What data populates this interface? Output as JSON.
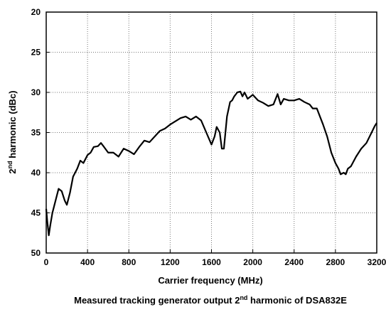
{
  "chart_data": {
    "type": "line",
    "title": [
      "Measured tracking generator output 2",
      "nd",
      " harmonic of DSA832E"
    ],
    "x_label": "Carrier frequency (MHz)",
    "y_label": [
      "2",
      "nd",
      " harmonic (dBc)"
    ],
    "x": [
      0,
      10,
      25,
      40,
      60,
      80,
      100,
      120,
      150,
      180,
      200,
      230,
      260,
      300,
      330,
      360,
      400,
      430,
      460,
      500,
      530,
      560,
      600,
      650,
      700,
      750,
      800,
      850,
      900,
      950,
      1000,
      1050,
      1100,
      1150,
      1200,
      1250,
      1300,
      1350,
      1400,
      1450,
      1500,
      1550,
      1600,
      1630,
      1650,
      1680,
      1700,
      1720,
      1750,
      1780,
      1800,
      1820,
      1850,
      1880,
      1900,
      1920,
      1950,
      2000,
      2050,
      2100,
      2150,
      2200,
      2240,
      2270,
      2300,
      2350,
      2400,
      2450,
      2500,
      2550,
      2580,
      2620,
      2680,
      2720,
      2760,
      2800,
      2830,
      2850,
      2880,
      2900,
      2920,
      2950,
      3000,
      3050,
      3100,
      3150,
      3180,
      3200
    ],
    "series": [
      {
        "color": "#000000",
        "values": [
          44.5,
          46,
          47.8,
          46.5,
          45,
          44,
          43,
          42,
          42.3,
          43.5,
          44,
          42.5,
          40.5,
          39.5,
          38.5,
          38.8,
          37.8,
          37.5,
          36.8,
          36.7,
          36.3,
          36.8,
          37.5,
          37.5,
          38,
          37,
          37.3,
          37.7,
          36.8,
          36,
          36.2,
          35.5,
          34.8,
          34.5,
          34,
          33.6,
          33.2,
          33,
          33.4,
          33,
          33.5,
          35,
          36.5,
          35.5,
          34.3,
          35,
          37,
          37,
          33,
          31.2,
          31,
          30.5,
          30,
          29.9,
          30.5,
          30,
          30.8,
          30.3,
          31,
          31.3,
          31.7,
          31.5,
          30.2,
          31.5,
          30.8,
          31,
          31,
          30.8,
          31.2,
          31.5,
          32,
          32,
          34,
          35.5,
          37.5,
          38.8,
          39.5,
          40.2,
          40,
          40.2,
          39.5,
          39.2,
          38,
          37,
          36.3,
          35,
          34.2,
          33.8
        ]
      }
    ],
    "xlim": [
      0,
      3200
    ],
    "xticks": [
      0,
      400,
      800,
      1200,
      1600,
      2000,
      2400,
      2800,
      3200
    ],
    "ylim": [
      50,
      20
    ],
    "yticks": [
      20,
      25,
      30,
      35,
      40,
      45,
      50
    ],
    "grid": true
  }
}
